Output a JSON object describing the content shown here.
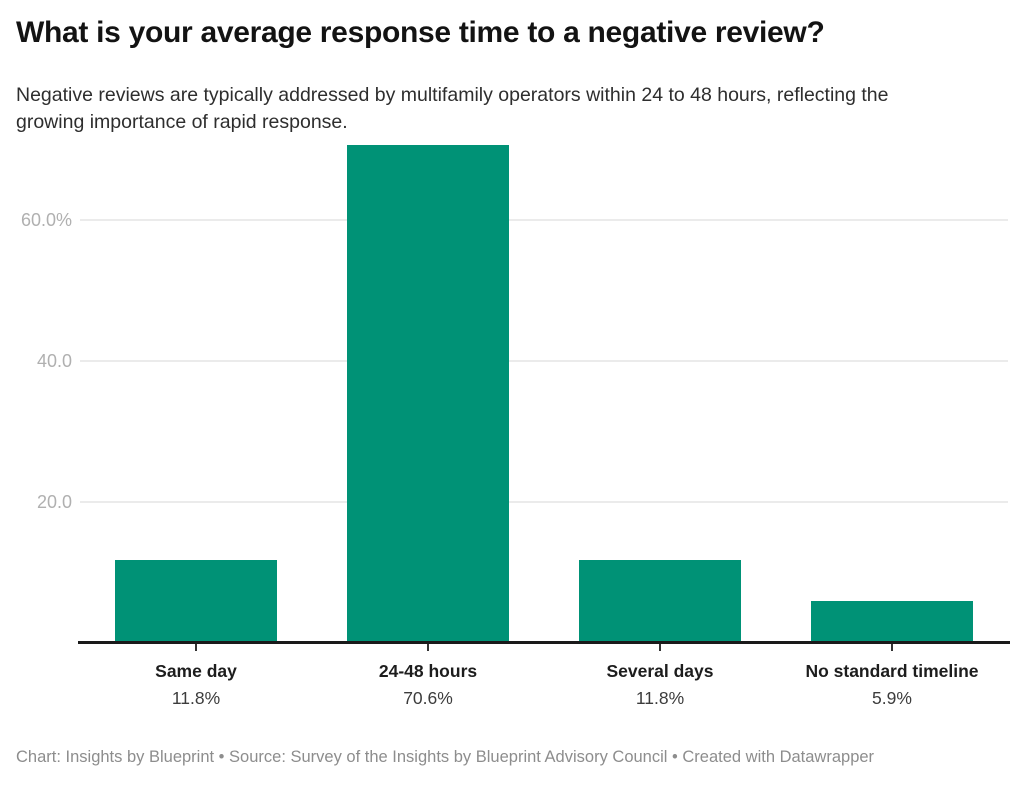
{
  "header": {
    "title": "What is your average response time to a negative review?",
    "subtitle": "Negative reviews are typically addressed by multifamily operators within 24 to 48 hours, reflecting the growing importance of rapid response."
  },
  "footer": {
    "text": "Chart: Insights by Blueprint • Source: Survey of the Insights by Blueprint Advisory Council • Created with Datawrapper"
  },
  "colors": {
    "bar": "#009276",
    "gridline": "#ebebeb",
    "axis_line": "#1a1a1a",
    "tick_mark": "#333333",
    "tick_label": "#b0b0b0",
    "category_label": "#1d1d1d",
    "value_label": "#3c3c3c",
    "footer": "#8d8d8d",
    "background": "#ffffff"
  },
  "chart_data": {
    "type": "bar",
    "title": "What is your average response time to a negative review?",
    "subtitle": "Negative reviews are typically addressed by multifamily operators within 24 to 48 hours, reflecting the growing importance of rapid response.",
    "categories": [
      "Same day",
      "24-48 hours",
      "Several days",
      "No standard timeline"
    ],
    "values": [
      11.8,
      70.6,
      11.8,
      5.9
    ],
    "value_labels": [
      "11.8%",
      "70.6%",
      "11.8%",
      "5.9%"
    ],
    "yticks": [
      {
        "value": 20,
        "label": "20.0"
      },
      {
        "value": 40,
        "label": "40.0"
      },
      {
        "value": 60,
        "label": "60.0%"
      }
    ],
    "ylim": [
      0,
      71
    ],
    "xlabel": "",
    "ylabel": "",
    "grid": true,
    "legend": "none",
    "bar_color": "#009276"
  }
}
